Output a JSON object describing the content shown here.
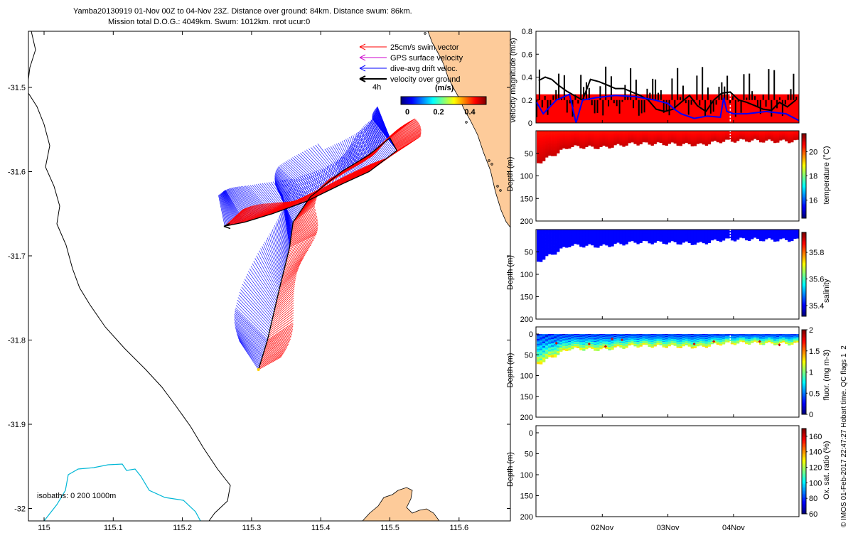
{
  "header": {
    "line1": "Yamba20130919 01-Nov 00Z to 04-Nov 23Z. Distance over ground: 84km. Distance swum: 86km.",
    "line2": "Mission total D.O.G.: 4049km. Swum: 1012km. nrot ucur:0"
  },
  "credit": "© IMOS 01-Feb-2017 22:47:27 Hobart time. QC flags 1  2",
  "colors": {
    "land": "#fdcb9a",
    "swim": "#ff0000",
    "gps": "#cc00cc",
    "drift": "#0000ff",
    "ground": "#000000",
    "isobath200": "#00b7d6",
    "coast": "#000000"
  },
  "map_legend": {
    "items": [
      {
        "label": "25cm/s swim vector",
        "color": "#ff0000"
      },
      {
        "label": "GPS surface velocity",
        "color": "#cc00cc"
      },
      {
        "label": "dive-avg drift veloc.",
        "color": "#0000ff"
      },
      {
        "label": "velocity over ground",
        "color": "#000000"
      }
    ],
    "scale_label": "4h",
    "colorbar_label": "(m/s)",
    "colorbar_ticks": [
      "0",
      "0.2",
      "0.4"
    ]
  },
  "isobaths_label": "isobaths: 0   200  1000m",
  "chart_data": [
    {
      "type": "scatter",
      "title": "",
      "x_ticks": [
        "115",
        "115.1",
        "115.2",
        "115.3",
        "115.4",
        "115.5",
        "115.6"
      ],
      "y_ticks": [
        "-31.5",
        "-31.6",
        "-31.7",
        "-31.8",
        "-31.9",
        "-32"
      ],
      "xlim": [
        114.98,
        115.66
      ],
      "ylim": [
        -32.03,
        -31.43
      ],
      "track": {
        "lon": [
          115.31,
          115.323,
          115.34,
          115.355,
          115.36,
          115.385,
          115.43,
          115.47,
          115.5,
          115.51,
          115.47,
          115.43,
          115.38,
          115.33,
          115.29,
          115.26
        ],
        "lat": [
          -31.835,
          -31.8,
          -31.74,
          -31.69,
          -31.66,
          -31.63,
          -31.6,
          -31.58,
          -31.56,
          -31.575,
          -31.6,
          -31.615,
          -31.635,
          -31.65,
          -31.66,
          -31.665
        ]
      }
    },
    {
      "type": "line",
      "ylabel": "velocity magnitude (m/s)",
      "ylim": [
        0,
        0.8
      ],
      "y_ticks": [
        "0",
        "0.2",
        "0.4",
        "0.6",
        "0.8"
      ],
      "x_day_range": [
        0,
        4
      ],
      "series": [
        {
          "name": "velocity over ground",
          "color": "#000000",
          "x": [
            0.03,
            0.13,
            0.23,
            0.33,
            0.45,
            0.57,
            0.7,
            0.82,
            0.95,
            1.08,
            1.2,
            1.33,
            1.45,
            1.58,
            1.7,
            1.82,
            1.95,
            2.08,
            2.2,
            2.33,
            2.45,
            2.58,
            2.7,
            2.82,
            2.95,
            3.08,
            3.2,
            3.33,
            3.45,
            3.58,
            3.7,
            3.82,
            3.95
          ],
          "y": [
            0.37,
            0.4,
            0.38,
            0.33,
            0.28,
            0.24,
            0.2,
            0.38,
            0.36,
            0.33,
            0.3,
            0.3,
            0.27,
            0.24,
            0.2,
            0.12,
            0.1,
            0.12,
            0.18,
            0.24,
            0.15,
            0.1,
            0.2,
            0.26,
            0.27,
            0.2,
            0.18,
            0.15,
            0.12,
            0.11,
            0.18,
            0.14,
            0.2
          ]
        },
        {
          "name": "dive-avg drift veloc.",
          "color": "#0000ff",
          "x": [
            0.0,
            0.1,
            0.3,
            0.5,
            0.6,
            0.7,
            0.9,
            1.2,
            1.5,
            1.8,
            2.0,
            2.1,
            2.2,
            2.4,
            2.6,
            2.8,
            2.85,
            2.9,
            3.0,
            3.2,
            3.5,
            3.8,
            4.0
          ],
          "y": [
            0.18,
            0.08,
            0.2,
            0.25,
            0.0,
            0.2,
            0.22,
            0.24,
            0.23,
            0.2,
            0.17,
            0.12,
            0.08,
            0.04,
            0.06,
            0.05,
            0.22,
            0.1,
            0.08,
            0.08,
            0.1,
            0.08,
            0.02
          ]
        },
        {
          "name": "25cm/s swim vector",
          "color": "#ff0000",
          "x": [
            0,
            4
          ],
          "y": [
            0.25,
            0.25
          ]
        }
      ]
    },
    {
      "type": "heatmap",
      "ylabel": "Depth (m)",
      "colorbar_label": "temperature (°C)",
      "colorbar_ticks": [
        "16",
        "18",
        "20"
      ],
      "clim": [
        14.5,
        21.5
      ],
      "ylim": [
        200,
        0
      ],
      "y_ticks": [
        "50",
        "100",
        "150",
        "200"
      ],
      "surface_value": 20.5,
      "deep_value": 21.0,
      "dive_depths": [
        {
          "x": 0.0,
          "d": 72
        },
        {
          "x": 0.5,
          "d": 34
        },
        {
          "x": 1.0,
          "d": 36
        },
        {
          "x": 1.5,
          "d": 27
        },
        {
          "x": 2.0,
          "d": 28
        },
        {
          "x": 2.5,
          "d": 30
        },
        {
          "x": 2.8,
          "d": 22
        },
        {
          "x": 3.2,
          "d": 20
        },
        {
          "x": 3.6,
          "d": 22
        },
        {
          "x": 4.0,
          "d": 22
        }
      ]
    },
    {
      "type": "heatmap",
      "ylabel": "Depth (m)",
      "colorbar_label": "salinity",
      "colorbar_ticks": [
        "35.4",
        "35.6",
        "35.8"
      ],
      "clim": [
        35.32,
        35.95
      ],
      "ylim": [
        200,
        0
      ],
      "y_ticks": [
        "50",
        "100",
        "150",
        "200"
      ],
      "surface_value": 35.4,
      "deep_value": 35.4,
      "dive_depths": [
        {
          "x": 0.0,
          "d": 72
        },
        {
          "x": 0.5,
          "d": 34
        },
        {
          "x": 1.0,
          "d": 36
        },
        {
          "x": 1.5,
          "d": 27
        },
        {
          "x": 2.0,
          "d": 28
        },
        {
          "x": 2.5,
          "d": 30
        },
        {
          "x": 2.8,
          "d": 22
        },
        {
          "x": 3.2,
          "d": 20
        },
        {
          "x": 3.6,
          "d": 22
        },
        {
          "x": 4.0,
          "d": 22
        }
      ]
    },
    {
      "type": "heatmap",
      "ylabel": "Depth (m)",
      "colorbar_label": "fluor. (mg m-3)",
      "colorbar_ticks": [
        "0",
        "0.5",
        "1",
        "1.5",
        "2"
      ],
      "clim": [
        0,
        2
      ],
      "ylim": [
        200,
        0
      ],
      "y_ticks": [
        "0",
        "50",
        "100",
        "150",
        "200"
      ],
      "surface_value": 0.3,
      "deep_value": 1.2,
      "dive_depths": [
        {
          "x": 0.0,
          "d": 72
        },
        {
          "x": 0.5,
          "d": 34
        },
        {
          "x": 1.0,
          "d": 36
        },
        {
          "x": 1.5,
          "d": 27
        },
        {
          "x": 2.0,
          "d": 28
        },
        {
          "x": 2.5,
          "d": 30
        },
        {
          "x": 2.8,
          "d": 22
        },
        {
          "x": 3.2,
          "d": 20
        },
        {
          "x": 3.6,
          "d": 22
        },
        {
          "x": 4.0,
          "d": 22
        }
      ]
    },
    {
      "type": "heatmap",
      "ylabel": "Depth (m)",
      "colorbar_label": "Ox. sat. ratio (%)",
      "colorbar_ticks": [
        "60",
        "80",
        "100",
        "120",
        "140",
        "160"
      ],
      "clim": [
        60,
        170
      ],
      "ylim": [
        200,
        0
      ],
      "y_ticks": [
        "0",
        "50",
        "100",
        "150",
        "200"
      ],
      "x_ticks": [
        "02Nov",
        "03Nov",
        "04Nov"
      ],
      "empty": true
    }
  ]
}
